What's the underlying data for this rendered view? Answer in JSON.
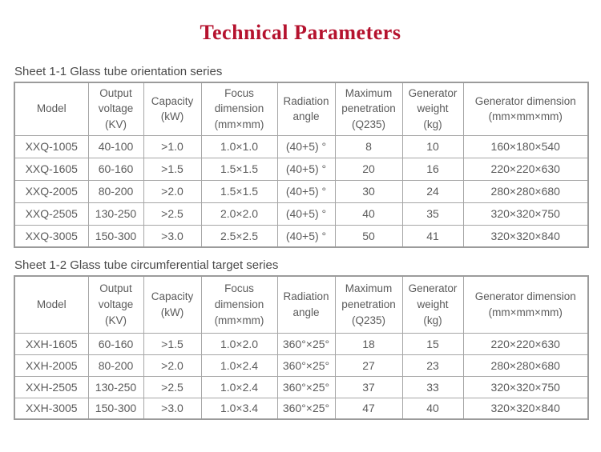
{
  "page": {
    "title": "Technical Parameters"
  },
  "colors": {
    "title": "#b5122e",
    "table_border": "#9b9b9b",
    "body_text": "#5b5b5b"
  },
  "tables": [
    {
      "caption": "Sheet 1-1 Glass tube orientation series",
      "headers": [
        "Model",
        "Output\nvoltage\n(KV)",
        "Capacity\n(kW)",
        "Focus\ndimension\n(mm×mm)",
        "Radiation\nangle",
        "Maximum\npenetration\n(Q235)",
        "Generator\nweight\n(kg)",
        "Generator dimension\n(mm×mm×mm)"
      ],
      "rows": [
        [
          "XXQ-1005",
          "40-100",
          ">1.0",
          "1.0×1.0",
          "(40+5) °",
          "8",
          "10",
          "160×180×540"
        ],
        [
          "XXQ-1605",
          "60-160",
          ">1.5",
          "1.5×1.5",
          "(40+5) °",
          "20",
          "16",
          "220×220×630"
        ],
        [
          "XXQ-2005",
          "80-200",
          ">2.0",
          "1.5×1.5",
          "(40+5) °",
          "30",
          "24",
          "280×280×680"
        ],
        [
          "XXQ-2505",
          "130-250",
          ">2.5",
          "2.0×2.0",
          "(40+5) °",
          "40",
          "35",
          "320×320×750"
        ],
        [
          "XXQ-3005",
          "150-300",
          ">3.0",
          "2.5×2.5",
          "(40+5) °",
          "50",
          "41",
          "320×320×840"
        ]
      ]
    },
    {
      "caption": "Sheet 1-2 Glass tube circumferential target series",
      "headers": [
        "Model",
        "Output\nvoltage\n(KV)",
        "Capacity\n(kW)",
        "Focus\ndimension\n(mm×mm)",
        "Radiation\nangle",
        "Maximum\npenetration\n(Q235)",
        "Generator\nweight\n(kg)",
        "Generator dimension\n(mm×mm×mm)"
      ],
      "rows": [
        [
          "XXH-1605",
          "60-160",
          ">1.5",
          "1.0×2.0",
          "360°×25°",
          "18",
          "15",
          "220×220×630"
        ],
        [
          "XXH-2005",
          "80-200",
          ">2.0",
          "1.0×2.4",
          "360°×25°",
          "27",
          "23",
          "280×280×680"
        ],
        [
          "XXH-2505",
          "130-250",
          ">2.5",
          "1.0×2.4",
          "360°×25°",
          "37",
          "33",
          "320×320×750"
        ],
        [
          "XXH-3005",
          "150-300",
          ">3.0",
          "1.0×3.4",
          "360°×25°",
          "47",
          "40",
          "320×320×840"
        ]
      ]
    }
  ]
}
